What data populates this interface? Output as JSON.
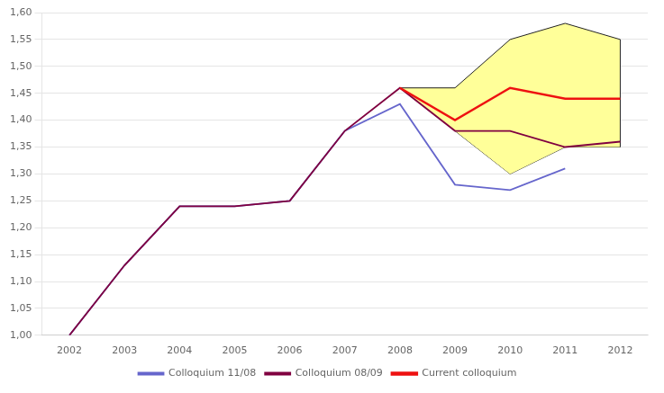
{
  "chart_data": {
    "type": "line",
    "series": [
      {
        "name": "Colloquium 11/08",
        "color": "#6666cc",
        "x": [
          2002,
          2003,
          2004,
          2005,
          2006,
          2007,
          2008,
          2009,
          2010,
          2011
        ],
        "values": [
          1.0,
          1.13,
          1.24,
          1.24,
          1.25,
          1.38,
          1.43,
          1.28,
          1.27,
          1.31
        ]
      },
      {
        "name": "Colloquium 08/09",
        "color": "#800040",
        "x": [
          2002,
          2003,
          2004,
          2005,
          2006,
          2007,
          2008,
          2009,
          2010,
          2011,
          2012
        ],
        "values": [
          1.0,
          1.13,
          1.24,
          1.24,
          1.25,
          1.38,
          1.46,
          1.38,
          1.38,
          1.35,
          1.36
        ]
      },
      {
        "name": "Current colloquium",
        "color": "#ee1111",
        "x": [
          2008,
          2009,
          2010,
          2011,
          2012
        ],
        "values": [
          1.46,
          1.4,
          1.46,
          1.44,
          1.44
        ]
      }
    ],
    "band": {
      "x": [
        2008,
        2009,
        2010,
        2011,
        2012
      ],
      "lower": [
        1.46,
        1.38,
        1.3,
        1.35,
        1.35
      ],
      "upper": [
        1.46,
        1.46,
        1.55,
        1.58,
        1.55
      ],
      "color": "#ffff99"
    },
    "xlim": [
      2001.5,
      2012.5
    ],
    "xticks": [
      2002,
      2003,
      2004,
      2005,
      2006,
      2007,
      2008,
      2009,
      2010,
      2011,
      2012
    ],
    "ylim": [
      1.0,
      1.6
    ],
    "yticks": [
      {
        "value": 1.0,
        "label": "1,00"
      },
      {
        "value": 1.05,
        "label": "1,05"
      },
      {
        "value": 1.1,
        "label": "1,10"
      },
      {
        "value": 1.15,
        "label": "1,15"
      },
      {
        "value": 1.2,
        "label": "1,20"
      },
      {
        "value": 1.25,
        "label": "1,25"
      },
      {
        "value": 1.3,
        "label": "1,30"
      },
      {
        "value": 1.35,
        "label": "1,35"
      },
      {
        "value": 1.4,
        "label": "1,40"
      },
      {
        "value": 1.45,
        "label": "1,45"
      },
      {
        "value": 1.5,
        "label": "1,50"
      },
      {
        "value": 1.55,
        "label": "1,55"
      },
      {
        "value": 1.6,
        "label": "1,60"
      }
    ],
    "grid": "y",
    "legend": "bottom"
  }
}
